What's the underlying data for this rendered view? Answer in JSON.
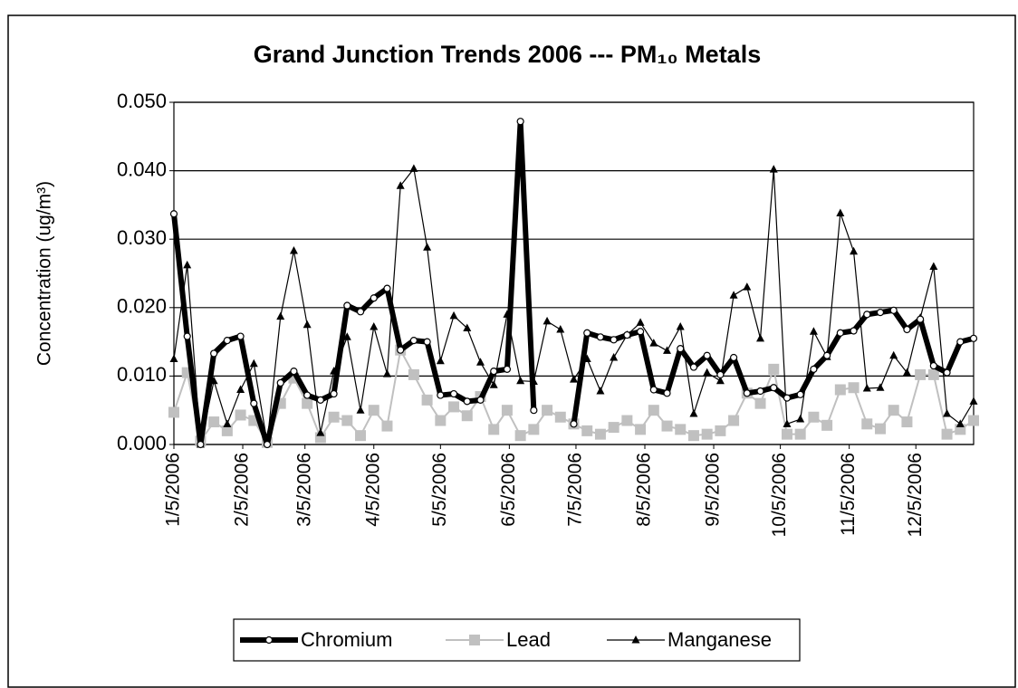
{
  "chart_data": {
    "type": "line",
    "title": "Grand Junction Trends 2006 --- PM₁₀ Metals",
    "y_label": "Concentration (ug/m³)",
    "x": [
      "2006-01-05",
      "2006-01-11",
      "2006-01-17",
      "2006-01-23",
      "2006-01-29",
      "2006-02-04",
      "2006-02-10",
      "2006-02-16",
      "2006-02-22",
      "2006-02-28",
      "2006-03-06",
      "2006-03-12",
      "2006-03-18",
      "2006-03-24",
      "2006-03-30",
      "2006-04-05",
      "2006-04-11",
      "2006-04-17",
      "2006-04-23",
      "2006-04-29",
      "2006-05-05",
      "2006-05-11",
      "2006-05-17",
      "2006-05-23",
      "2006-05-29",
      "2006-06-04",
      "2006-06-10",
      "2006-06-16",
      "2006-06-22",
      "2006-06-28",
      "2006-07-04",
      "2006-07-10",
      "2006-07-16",
      "2006-07-22",
      "2006-07-28",
      "2006-08-03",
      "2006-08-09",
      "2006-08-15",
      "2006-08-21",
      "2006-08-27",
      "2006-09-02",
      "2006-09-08",
      "2006-09-14",
      "2006-09-20",
      "2006-09-26",
      "2006-10-02",
      "2006-10-08",
      "2006-10-14",
      "2006-10-20",
      "2006-10-26",
      "2006-11-01",
      "2006-11-07",
      "2006-11-13",
      "2006-11-19",
      "2006-11-25",
      "2006-12-01",
      "2006-12-07",
      "2006-12-13",
      "2006-12-19",
      "2006-12-25",
      "2006-12-31"
    ],
    "series": [
      {
        "name": "Chromium",
        "color": "#000000",
        "values": [
          0.0337,
          0.0158,
          0.0,
          0.0133,
          0.0152,
          0.0158,
          0.006,
          0.0,
          0.009,
          0.0107,
          0.0072,
          0.0065,
          0.0074,
          0.0203,
          0.0194,
          0.0214,
          0.0228,
          0.0138,
          0.0152,
          0.015,
          0.0072,
          0.0074,
          0.0063,
          0.0065,
          0.0107,
          0.011,
          0.0472,
          0.005,
          null,
          null,
          0.003,
          0.0163,
          0.0157,
          0.0153,
          0.016,
          0.0165,
          0.008,
          0.0075,
          0.014,
          0.0113,
          0.013,
          0.0102,
          0.0127,
          0.0075,
          0.0078,
          0.0083,
          0.0068,
          0.0073,
          0.011,
          0.013,
          0.0163,
          0.0166,
          0.019,
          0.0193,
          0.0196,
          0.0168,
          0.0183,
          0.0115,
          0.0105,
          0.015,
          0.0155
        ]
      },
      {
        "name": "Lead",
        "color": "#c0c0c0",
        "values": [
          0.0047,
          0.0105,
          0.0005,
          0.0033,
          0.002,
          0.0043,
          0.0035,
          0.0003,
          0.006,
          0.0097,
          0.006,
          0.001,
          0.004,
          0.0035,
          0.0013,
          0.005,
          0.0027,
          0.0138,
          0.0102,
          0.0065,
          0.0035,
          0.0055,
          0.0042,
          0.007,
          0.0022,
          0.005,
          0.0013,
          0.0022,
          0.005,
          0.004,
          0.003,
          0.002,
          0.0015,
          0.0025,
          0.0035,
          0.0022,
          0.005,
          0.0027,
          0.0022,
          0.0013,
          0.0015,
          0.002,
          0.0035,
          0.0075,
          0.006,
          0.011,
          0.0015,
          0.0015,
          0.004,
          0.0028,
          0.008,
          0.0083,
          0.003,
          0.0023,
          0.005,
          0.0033,
          0.0102,
          0.0102,
          0.0015,
          0.0022,
          0.0035
        ]
      },
      {
        "name": "Manganese",
        "color": "#000000",
        "values": [
          0.0125,
          0.0262,
          0.0,
          0.0093,
          0.003,
          0.008,
          0.0118,
          0.0003,
          0.0187,
          0.0283,
          0.0175,
          0.0017,
          0.0107,
          0.0157,
          0.005,
          0.0172,
          0.0103,
          0.0378,
          0.0403,
          0.0288,
          0.0122,
          0.0188,
          0.017,
          0.012,
          0.0087,
          0.019,
          0.0093,
          0.0092,
          0.018,
          0.0168,
          0.0095,
          0.0125,
          0.0078,
          0.0127,
          0.016,
          0.0178,
          0.0148,
          0.0137,
          0.0172,
          0.0045,
          0.0105,
          0.0093,
          0.0218,
          0.023,
          0.0155,
          0.0402,
          0.003,
          0.0037,
          0.0165,
          0.0128,
          0.0338,
          0.0282,
          0.0082,
          0.0083,
          0.013,
          0.0105,
          0.0185,
          0.026,
          0.0045,
          0.003,
          0.0063
        ]
      }
    ],
    "xlim": [
      "2006-01-05",
      "2006-12-31"
    ],
    "xticks": [
      {
        "value": "2006-01-05",
        "label": "1/5/2006"
      },
      {
        "value": "2006-02-05",
        "label": "2/5/2006"
      },
      {
        "value": "2006-03-05",
        "label": "3/5/2006"
      },
      {
        "value": "2006-04-05",
        "label": "4/5/2006"
      },
      {
        "value": "2006-05-05",
        "label": "5/5/2006"
      },
      {
        "value": "2006-06-05",
        "label": "6/5/2006"
      },
      {
        "value": "2006-07-05",
        "label": "7/5/2006"
      },
      {
        "value": "2006-08-05",
        "label": "8/5/2006"
      },
      {
        "value": "2006-09-05",
        "label": "9/5/2006"
      },
      {
        "value": "2006-10-05",
        "label": "10/5/2006"
      },
      {
        "value": "2006-11-05",
        "label": "11/5/2006"
      },
      {
        "value": "2006-12-05",
        "label": "12/5/2006"
      }
    ],
    "ylim": [
      0,
      0.05
    ],
    "yticks": [
      {
        "value": 0,
        "label": "0.000"
      },
      {
        "value": 0.01,
        "label": "0.010"
      },
      {
        "value": 0.02,
        "label": "0.020"
      },
      {
        "value": 0.03,
        "label": "0.030"
      },
      {
        "value": 0.04,
        "label": "0.040"
      },
      {
        "value": 0.05,
        "label": "0.050"
      }
    ],
    "grid": true,
    "legend": "bottom"
  }
}
